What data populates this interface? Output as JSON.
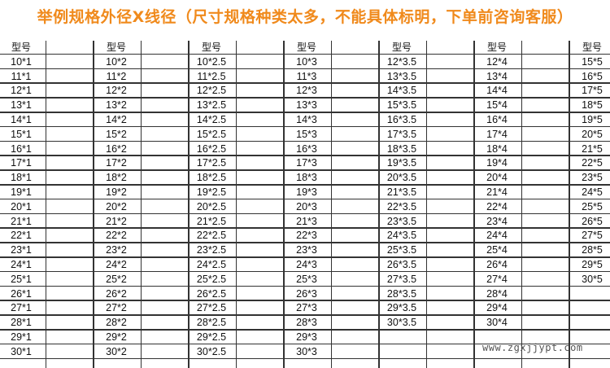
{
  "title": "举例规格外径X线径（尺寸规格种类太多，不能具体标明，下单前咨询客服）",
  "header_label": "型号",
  "columns": [
    [
      "10*1",
      "11*1",
      "12*1",
      "13*1",
      "14*1",
      "15*1",
      "16*1",
      "17*1",
      "18*1",
      "19*1",
      "20*1",
      "21*1",
      "22*1",
      "23*1",
      "24*1",
      "25*1",
      "26*1",
      "27*1",
      "28*1",
      "29*1",
      "30*1"
    ],
    [
      "10*2",
      "11*2",
      "12*2",
      "13*2",
      "14*2",
      "15*2",
      "16*2",
      "17*2",
      "18*2",
      "19*2",
      "20*2",
      "21*2",
      "22*2",
      "23*2",
      "24*2",
      "25*2",
      "26*2",
      "27*2",
      "28*2",
      "29*2",
      "30*2"
    ],
    [
      "10*2.5",
      "11*2.5",
      "12*2.5",
      "13*2.5",
      "14*2.5",
      "15*2.5",
      "16*2.5",
      "17*2.5",
      "18*2.5",
      "19*2.5",
      "20*2.5",
      "21*2.5",
      "22*2.5",
      "23*2.5",
      "24*2.5",
      "25*2.5",
      "26*2.5",
      "27*2.5",
      "28*2.5",
      "29*2.5",
      "30*2.5"
    ],
    [
      "10*3",
      "11*3",
      "12*3",
      "13*3",
      "14*3",
      "15*3",
      "16*3",
      "17*3",
      "18*3",
      "19*3",
      "20*3",
      "21*3",
      "22*3",
      "23*3",
      "24*3",
      "25*3",
      "26*3",
      "27*3",
      "28*3",
      "29*3",
      "30*3"
    ],
    [
      "12*3.5",
      "13*3.5",
      "14*3.5",
      "15*3.5",
      "16*3.5",
      "17*3.5",
      "18*3.5",
      "19*3.5",
      "20*3.5",
      "21*3.5",
      "22*3.5",
      "23*3.5",
      "24*3.5",
      "25*3.5",
      "26*3.5",
      "27*3.5",
      "28*3.5",
      "29*3.5",
      "30*3.5"
    ],
    [
      "12*4",
      "13*4",
      "14*4",
      "15*4",
      "16*4",
      "17*4",
      "18*4",
      "19*4",
      "20*4",
      "21*4",
      "22*4",
      "23*4",
      "24*4",
      "25*4",
      "26*4",
      "27*4",
      "28*4",
      "29*4",
      "30*4"
    ],
    [
      "15*5",
      "16*5",
      "17*5",
      "18*5",
      "19*5",
      "20*5",
      "21*5",
      "22*5",
      "23*5",
      "24*5",
      "25*5",
      "26*5",
      "27*5",
      "28*5",
      "29*5",
      "30*5"
    ]
  ],
  "watermark": "www.zgxjjypt.com",
  "colors": {
    "title": "#f08a1c",
    "grid": "#333333"
  }
}
